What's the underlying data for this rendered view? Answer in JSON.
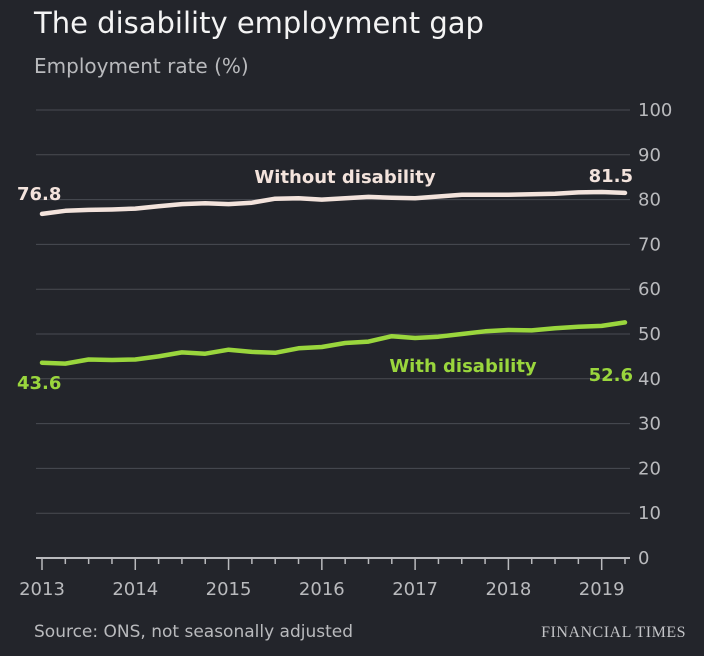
{
  "header": {
    "title": "The disability employment gap",
    "subtitle": "Employment rate (%)"
  },
  "footer": {
    "source": "Source: ONS, not seasonally adjusted",
    "brand": "FINANCIAL TIMES"
  },
  "colors": {
    "background": "#23252b",
    "without_disability": "#f3e3dc",
    "with_disability": "#9ad63d",
    "grid": "#4a4c53",
    "axis_text": "#b9babd"
  },
  "chart_data": {
    "type": "line",
    "title": "The disability employment gap",
    "ylabel": "Employment rate (%)",
    "xlabel": "",
    "ylim": [
      0,
      100
    ],
    "yticks": [
      0,
      10,
      20,
      30,
      40,
      50,
      60,
      70,
      80,
      90,
      100
    ],
    "xlim": [
      2013,
      2019.25
    ],
    "xticks": [
      2013,
      2014,
      2015,
      2016,
      2017,
      2018,
      2019
    ],
    "xtick_labels": [
      "2013",
      "2014",
      "2015",
      "2016",
      "2017",
      "2018",
      "2019"
    ],
    "grid": true,
    "y_axis_side": "right",
    "x": [
      2013.0,
      2013.25,
      2013.5,
      2013.75,
      2014.0,
      2014.25,
      2014.5,
      2014.75,
      2015.0,
      2015.25,
      2015.5,
      2015.75,
      2016.0,
      2016.25,
      2016.5,
      2016.75,
      2017.0,
      2017.25,
      2017.5,
      2017.75,
      2018.0,
      2018.25,
      2018.5,
      2018.75,
      2019.0,
      2019.25
    ],
    "series": [
      {
        "name": "Without disability",
        "color": "#f3e3dc",
        "start_label": "76.8",
        "end_label": "81.5",
        "values": [
          76.8,
          77.5,
          77.7,
          77.8,
          78.0,
          78.5,
          79.0,
          79.2,
          79.0,
          79.3,
          80.2,
          80.3,
          80.0,
          80.3,
          80.6,
          80.4,
          80.3,
          80.7,
          81.1,
          81.1,
          81.1,
          81.2,
          81.3,
          81.6,
          81.7,
          81.5
        ]
      },
      {
        "name": "With disability",
        "color": "#9ad63d",
        "start_label": "43.6",
        "end_label": "52.6",
        "values": [
          43.6,
          43.4,
          44.3,
          44.2,
          44.3,
          45.0,
          45.9,
          45.6,
          46.5,
          46.0,
          45.8,
          46.8,
          47.1,
          48.0,
          48.3,
          49.5,
          49.1,
          49.4,
          50.0,
          50.6,
          50.9,
          50.8,
          51.3,
          51.6,
          51.8,
          52.6
        ]
      }
    ]
  }
}
